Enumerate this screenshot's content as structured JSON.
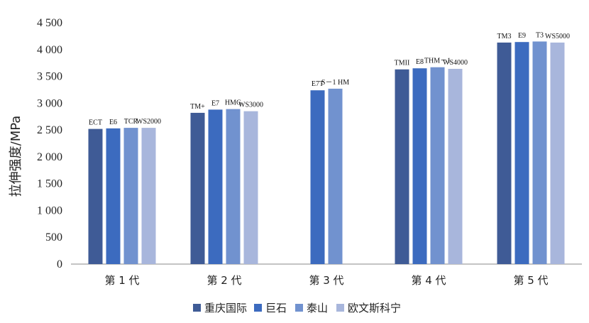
{
  "chart_data": {
    "type": "bar",
    "title": "",
    "xlabel": "",
    "ylabel": "拉伸强度/MPa",
    "ylim": [
      0,
      4500
    ],
    "yticks": [
      0,
      500,
      1000,
      1500,
      2000,
      2500,
      3000,
      3500,
      4000,
      4500
    ],
    "ytick_labels": [
      "0",
      "500",
      "1 000",
      "1 500",
      "2 000",
      "2 500",
      "3 000",
      "3 500",
      "4 000",
      "4 500"
    ],
    "categories": [
      "第 1 代",
      "第 2 代",
      "第 3 代",
      "第 4 代",
      "第 5 代"
    ],
    "grid": false,
    "legend_position": "bottom",
    "series": [
      {
        "name": "重庆国际",
        "color": "#3f5b96",
        "values": [
          2520,
          2820,
          null,
          3630,
          4130
        ],
        "labels": [
          "ECT",
          "TM+",
          "",
          "TMII",
          "TM3"
        ]
      },
      {
        "name": "巨石",
        "color": "#3c6bbf",
        "values": [
          2530,
          2880,
          3240,
          3650,
          4140
        ],
        "labels": [
          "E6",
          "E7",
          "E7T",
          "E8",
          "E9"
        ]
      },
      {
        "name": "泰山",
        "color": "#7192cf",
        "values": [
          2540,
          2890,
          3270,
          3670,
          4150
        ],
        "labels": [
          "TCR",
          "HMG",
          "S－1 HM",
          "THM－1",
          "T3"
        ]
      },
      {
        "name": "欧文斯科宁",
        "color": "#a8b6dc",
        "values": [
          2540,
          2850,
          null,
          3640,
          4130
        ],
        "labels": [
          "WS2000",
          "WS3000",
          "",
          "WS4000",
          "WS5000"
        ]
      }
    ]
  }
}
